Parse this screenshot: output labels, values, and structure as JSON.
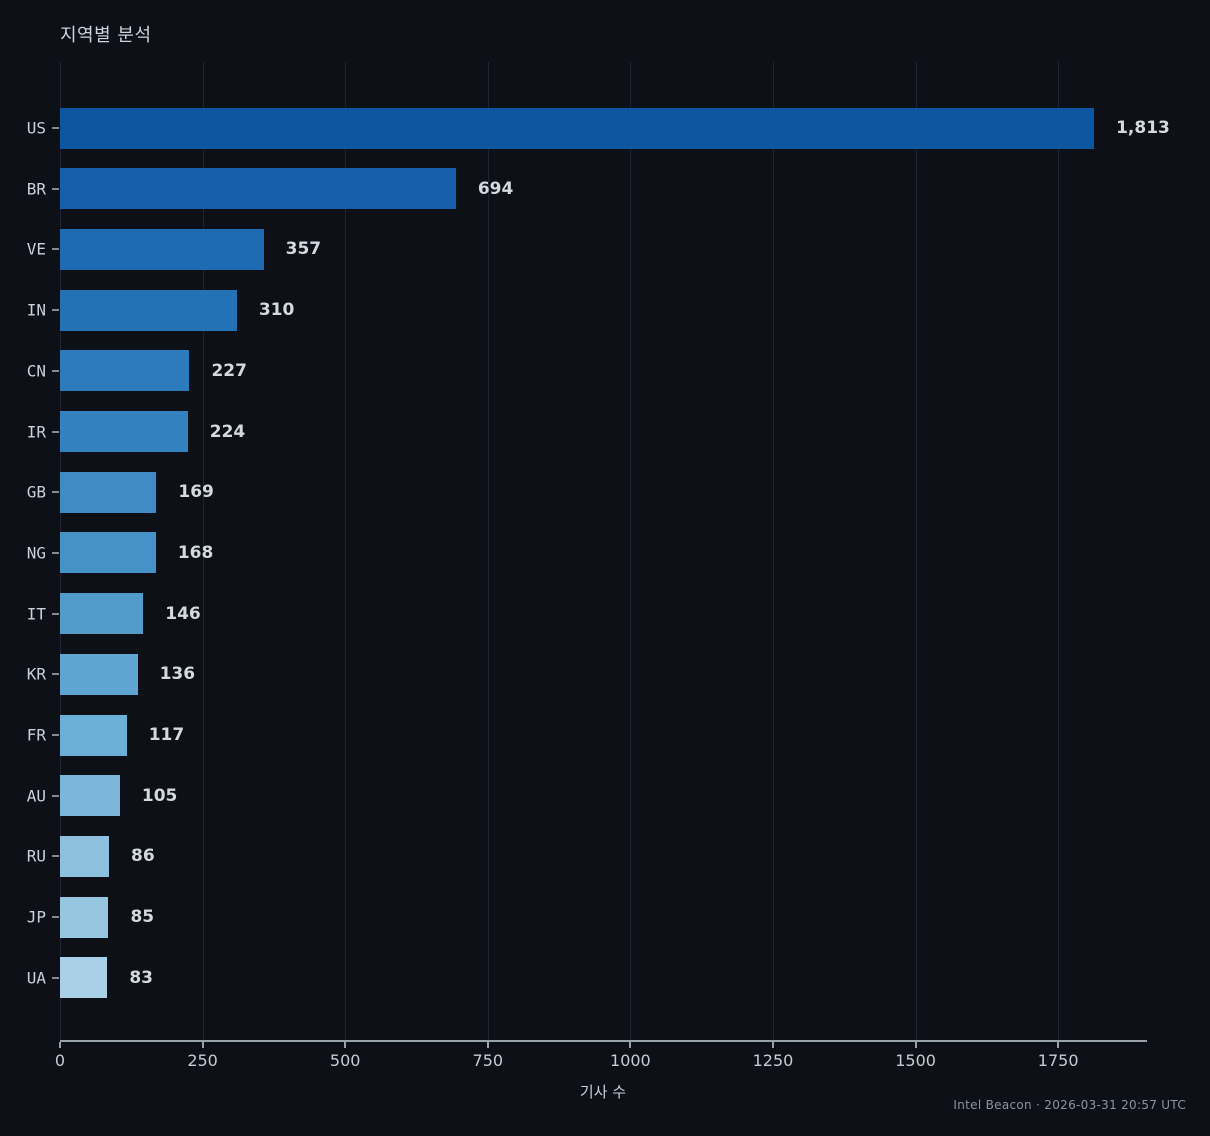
{
  "title": "지역별 분석",
  "x_axis_label": "기사 수",
  "footer": "Intel Beacon · 2026-03-31 20:57 UTC",
  "colors": {
    "background": "#0d1117",
    "text": "#c9d1d9",
    "muted_text": "#8b949e",
    "axis": "#99a1a9",
    "gridline": "#1d2433"
  },
  "chart_data": {
    "type": "bar",
    "orientation": "horizontal",
    "title": "지역별 분석",
    "xlabel": "기사 수",
    "ylabel": "",
    "categories": [
      "US",
      "BR",
      "VE",
      "IN",
      "CN",
      "IR",
      "GB",
      "NG",
      "IT",
      "KR",
      "FR",
      "AU",
      "RU",
      "JP",
      "UA"
    ],
    "values": [
      1813,
      694,
      357,
      310,
      227,
      224,
      169,
      168,
      146,
      136,
      117,
      105,
      86,
      85,
      83
    ],
    "value_labels": [
      "1,813",
      "694",
      "357",
      "310",
      "227",
      "224",
      "169",
      "168",
      "146",
      "136",
      "117",
      "105",
      "86",
      "85",
      "83"
    ],
    "bar_colors": [
      "#0d57a1",
      "#1660ab",
      "#1f6bb2",
      "#2472b6",
      "#2d7bbb",
      "#3382bf",
      "#3e8cc3",
      "#4492c6",
      "#529bca",
      "#5ea6d1",
      "#6cafd7",
      "#7cb7da",
      "#8ec1de",
      "#97c6e1",
      "#a9d0e6"
    ],
    "xlim": [
      0,
      1904
    ],
    "xticks": [
      0,
      250,
      500,
      750,
      1000,
      1250,
      1500,
      1750
    ],
    "grid": "vertical",
    "legend": "none"
  }
}
